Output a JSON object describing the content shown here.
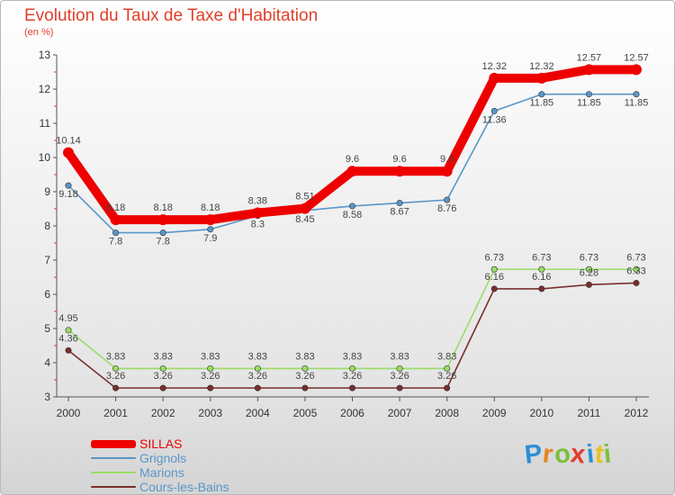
{
  "title": "Evolution du Taux de Taxe d'Habitation",
  "subtitle": "(en %)",
  "brand": {
    "letters": [
      "P",
      "r",
      "o",
      "x",
      "i",
      "t",
      "i"
    ],
    "colors": [
      "#2b8fd6",
      "#e8831f",
      "#7cbf3a",
      "#e33b2c",
      "#2b8fd6",
      "#e8c21f",
      "#7cbf3a"
    ]
  },
  "chart_data": {
    "type": "line",
    "x": [
      "2000",
      "2001",
      "2002",
      "2003",
      "2004",
      "2005",
      "2006",
      "2007",
      "2008",
      "2009",
      "2010",
      "2011",
      "2012"
    ],
    "ylim": [
      3,
      13
    ],
    "yticks": [
      "3",
      "4",
      "5",
      "6",
      "7",
      "8",
      "9",
      "10",
      "11",
      "12",
      "13"
    ],
    "grid": false,
    "legend_position": "bottom-left",
    "series": [
      {
        "name": "SILLAS",
        "color": "#ee0000",
        "values": [
          10.14,
          8.18,
          8.18,
          8.18,
          8.38,
          8.51,
          9.6,
          9.6,
          9.6,
          12.32,
          12.32,
          12.57,
          12.57
        ],
        "labels": [
          "10.14",
          "8.18",
          "8.18",
          "8.18",
          "8.38",
          "8.51",
          "9.6",
          "9.6",
          "9.6",
          "12.32",
          "12.32",
          "12.57",
          "12.57"
        ]
      },
      {
        "name": "Grignols",
        "color": "#5a96c8",
        "values": [
          9.18,
          7.8,
          7.8,
          7.9,
          8.3,
          8.45,
          8.58,
          8.67,
          8.76,
          11.36,
          11.85,
          11.85,
          11.85
        ],
        "labels": [
          "9.18",
          "7.8",
          "7.8",
          "7.9",
          "8.3",
          "8.45",
          "8.58",
          "8.67",
          "8.76",
          "11.36",
          "11.85",
          "11.85",
          "11.85"
        ]
      },
      {
        "name": "Marions",
        "color": "#99dd66",
        "values": [
          4.95,
          3.83,
          3.83,
          3.83,
          3.83,
          3.83,
          3.83,
          3.83,
          3.83,
          6.73,
          6.73,
          6.73,
          6.73
        ],
        "labels": [
          "4.95",
          "3.83",
          "3.83",
          "3.83",
          "3.83",
          "3.83",
          "3.83",
          "3.83",
          "3.83",
          "6.73",
          "6.73",
          "6.73",
          "6.73"
        ]
      },
      {
        "name": "Cours-les-Bains",
        "color": "#7a2e2e",
        "values": [
          4.36,
          3.26,
          3.26,
          3.26,
          3.26,
          3.26,
          3.26,
          3.26,
          3.26,
          6.16,
          6.16,
          6.28,
          6.33
        ],
        "labels": [
          "4.36",
          "3.26",
          "3.26",
          "3.26",
          "3.26",
          "3.26",
          "3.26",
          "3.26",
          "3.26",
          "6.16",
          "6.16",
          "6.28",
          "6.33"
        ]
      }
    ]
  }
}
